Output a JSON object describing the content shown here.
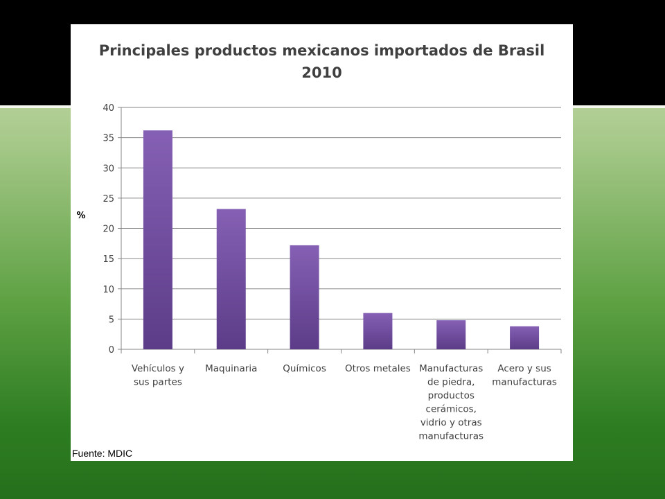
{
  "slide": {
    "source": "Fuente: MDIC"
  },
  "chart_data": {
    "type": "bar",
    "title": "Principales productos mexicanos importados de Brasil",
    "subtitle": "2010",
    "xlabel": "",
    "ylabel": "%",
    "ylim": [
      0,
      40
    ],
    "yticks": [
      0,
      5,
      10,
      15,
      20,
      25,
      30,
      35,
      40
    ],
    "grid": true,
    "legend": "none",
    "bar_color": "#7a54a8",
    "categories": [
      [
        "Vehículos y",
        "sus partes"
      ],
      [
        "Maquinaria"
      ],
      [
        "Químicos"
      ],
      [
        "Otros metales"
      ],
      [
        "Manufacturas",
        "de piedra,",
        "productos",
        "cerámicos,",
        "vidrio y otras",
        "manufacturas"
      ],
      [
        "Acero y sus",
        "manufacturas"
      ]
    ],
    "values": [
      36.2,
      23.2,
      17.2,
      6.0,
      4.8,
      3.8
    ]
  }
}
